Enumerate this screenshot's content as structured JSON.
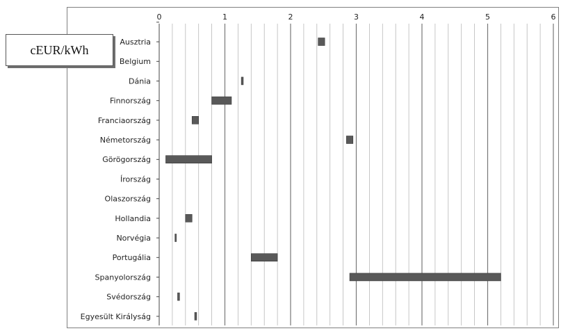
{
  "chart_data": {
    "type": "bar",
    "subtype": "floating-range-horizontal",
    "unit_label": "cEUR/kWh",
    "xlim": [
      0,
      6
    ],
    "x_ticks": [
      "0",
      "1",
      "2",
      "3",
      "4",
      "5",
      "6"
    ],
    "grid": true,
    "categories": [
      "Ausztria",
      "Belgium",
      "Dánia",
      "Finnország",
      "Franciaország",
      "Németország",
      "Görögország",
      "Írország",
      "Olaszország",
      "Hollandia",
      "Norvégia",
      "Portugália",
      "Spanyolország",
      "Svédország",
      "Egyesült Királyság"
    ],
    "series": [
      {
        "ranges": [
          [
            2.42,
            2.52
          ],
          null,
          [
            1.25,
            1.28
          ],
          [
            0.8,
            1.1
          ],
          [
            0.5,
            0.6
          ],
          [
            2.85,
            2.95
          ],
          [
            0.1,
            0.8
          ],
          null,
          null,
          [
            0.4,
            0.5
          ],
          [
            0.24,
            0.26
          ],
          [
            1.4,
            1.8
          ],
          [
            2.9,
            5.2
          ],
          [
            0.28,
            0.31
          ],
          [
            0.54,
            0.57
          ]
        ]
      }
    ],
    "colors": {
      "bar": "#595959",
      "grid_major": "#777777",
      "grid_minor": "#b8b8b8",
      "axis": "#444444"
    }
  }
}
